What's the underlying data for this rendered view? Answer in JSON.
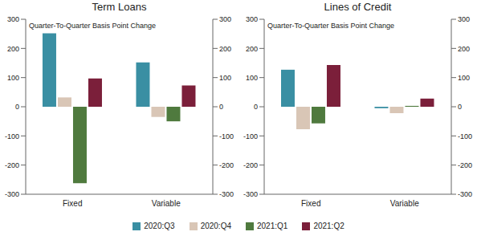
{
  "chart_data": [
    {
      "type": "bar",
      "title": "Term Loans",
      "subtitle": "Quarter-To-Quarter Basis Point Change",
      "categories": [
        "Fixed",
        "Variable"
      ],
      "series": [
        {
          "name": "2020:Q3",
          "color": "#3a8fa3",
          "values": [
            252,
            152
          ]
        },
        {
          "name": "2020:Q4",
          "color": "#d9c6b6",
          "values": [
            32,
            -35
          ]
        },
        {
          "name": "2021:Q1",
          "color": "#4f7a3e",
          "values": [
            -262,
            -50
          ]
        },
        {
          "name": "2021:Q2",
          "color": "#7b1f3a",
          "values": [
            97,
            73
          ]
        }
      ],
      "ylim": [
        -300,
        300
      ],
      "yticks": [
        -300,
        -200,
        -100,
        0,
        100,
        200,
        300
      ],
      "y2lim": [
        -300,
        300
      ],
      "y2ticks": [
        -300,
        -200,
        -100,
        0,
        100,
        200,
        300
      ],
      "grid": false,
      "legend": "bottom"
    },
    {
      "type": "bar",
      "title": "Lines of Credit",
      "subtitle": "Quarter-To-Quarter Basis Point Change",
      "categories": [
        "Fixed",
        "Variable"
      ],
      "series": [
        {
          "name": "2020:Q3",
          "color": "#3a8fa3",
          "values": [
            127,
            -5
          ]
        },
        {
          "name": "2020:Q4",
          "color": "#d9c6b6",
          "values": [
            -77,
            -22
          ]
        },
        {
          "name": "2021:Q1",
          "color": "#4f7a3e",
          "values": [
            -57,
            3
          ]
        },
        {
          "name": "2021:Q2",
          "color": "#7b1f3a",
          "values": [
            143,
            28
          ]
        }
      ],
      "ylim": [
        -300,
        300
      ],
      "yticks": [
        -300,
        -200,
        -100,
        0,
        100,
        200,
        300
      ],
      "y2lim": [
        -300,
        300
      ],
      "y2ticks": [
        -300,
        -200,
        -100,
        0,
        100,
        200,
        300
      ],
      "grid": false,
      "legend": "bottom"
    }
  ]
}
